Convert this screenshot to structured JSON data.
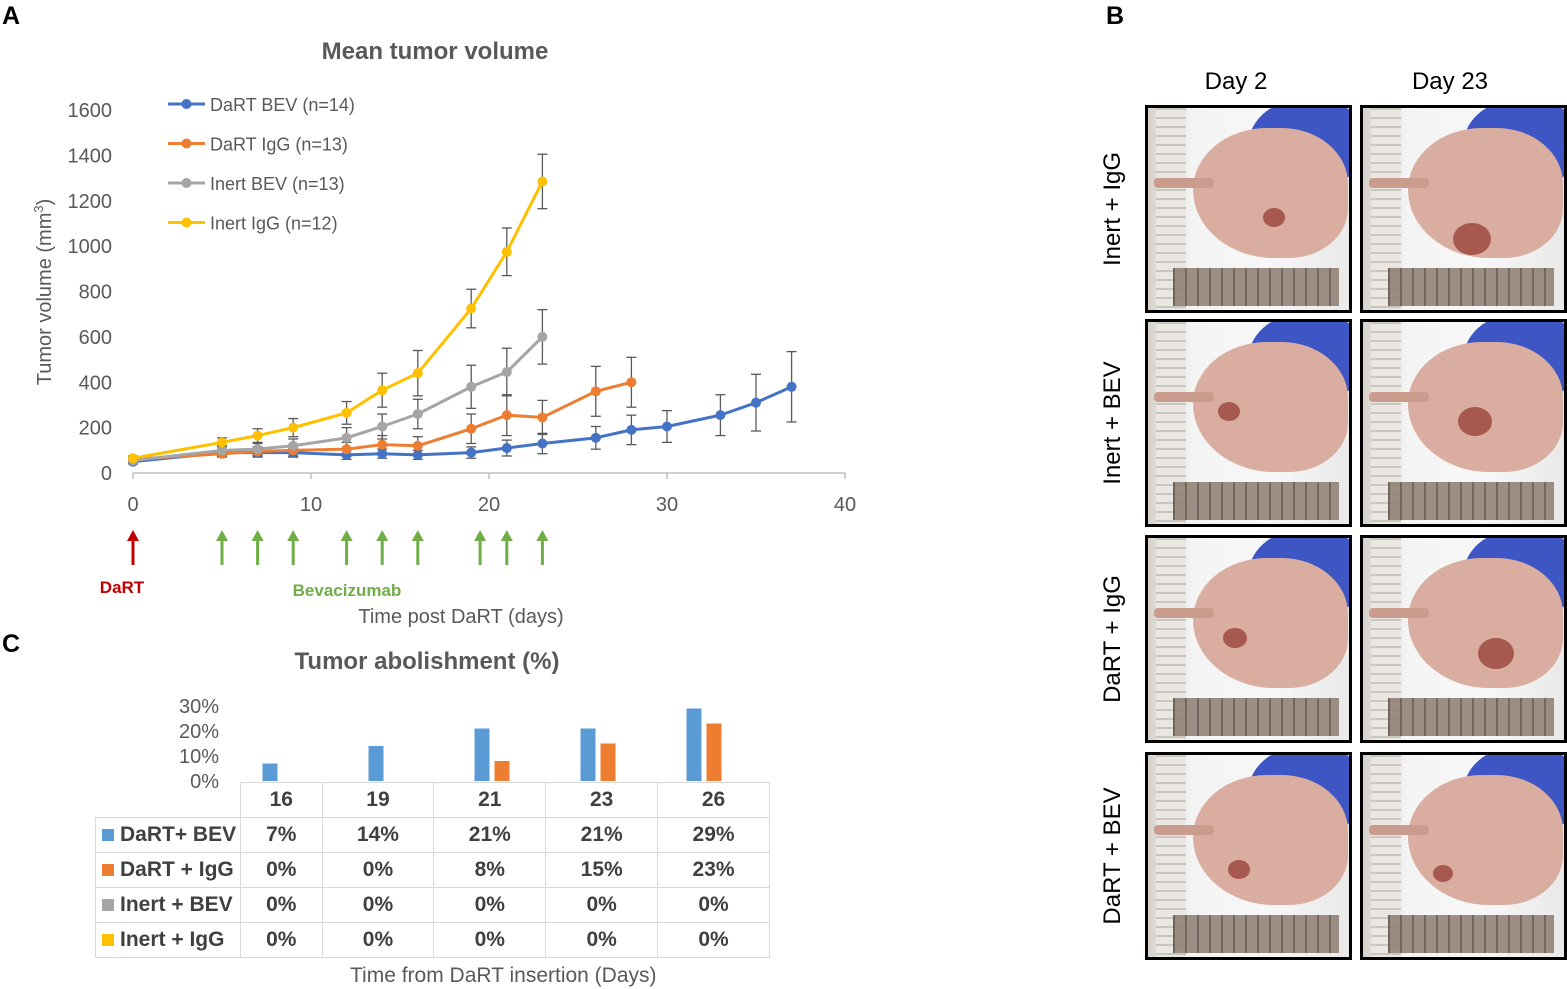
{
  "panel_labels": {
    "a": "A",
    "b": "B",
    "c": "C"
  },
  "chart_data": [
    {
      "type": "line",
      "title": "Mean tumor volume",
      "xlabel": "Time post DaRT (days)",
      "ylabel": "Tumor volume (mm",
      "ylabel_sup": "3",
      "ylabel_end": ")",
      "xlim": [
        0,
        40
      ],
      "ylim": [
        0,
        1600
      ],
      "xticks": [
        "0",
        "10",
        "20",
        "30",
        "40"
      ],
      "yticks": [
        "0",
        "200",
        "400",
        "600",
        "800",
        "1000",
        "1200",
        "1400",
        "1600"
      ],
      "legend_position": "top-left",
      "series": [
        {
          "name": "DaRT BEV (n=14)",
          "color": "#4472C4",
          "x": [
            0,
            5,
            7,
            9,
            12,
            14,
            16,
            19,
            21,
            23,
            26,
            28,
            30,
            33,
            35,
            37
          ],
          "y": [
            50,
            90,
            90,
            90,
            80,
            85,
            80,
            90,
            110,
            130,
            155,
            190,
            205,
            255,
            310,
            380
          ],
          "err": [
            10,
            15,
            20,
            20,
            20,
            20,
            20,
            25,
            35,
            45,
            50,
            65,
            70,
            90,
            125,
            155
          ]
        },
        {
          "name": "DaRT IgG (n=13)",
          "color": "#ED7D31",
          "x": [
            0,
            5,
            7,
            9,
            12,
            14,
            16,
            19,
            21,
            23,
            26,
            28
          ],
          "y": [
            60,
            85,
            95,
            100,
            105,
            125,
            120,
            195,
            255,
            245,
            360,
            400
          ],
          "err": [
            10,
            15,
            20,
            25,
            30,
            40,
            40,
            65,
            90,
            75,
            110,
            110
          ]
        },
        {
          "name": "Inert BEV (n=13)",
          "color": "#A5A5A5",
          "x": [
            0,
            5,
            7,
            9,
            12,
            14,
            16,
            19,
            21,
            23
          ],
          "y": [
            55,
            100,
            105,
            120,
            155,
            205,
            260,
            380,
            445,
            600
          ],
          "err": [
            10,
            20,
            25,
            30,
            45,
            55,
            65,
            95,
            105,
            120
          ]
        },
        {
          "name": "Inert IgG (n=12)",
          "color": "#FFC000",
          "x": [
            0,
            5,
            7,
            9,
            12,
            14,
            16,
            19,
            21,
            23
          ],
          "y": [
            65,
            135,
            165,
            200,
            265,
            365,
            440,
            725,
            975,
            1285
          ],
          "err": [
            10,
            20,
            30,
            40,
            50,
            75,
            100,
            85,
            105,
            120
          ]
        }
      ],
      "annotations": {
        "dart_label": "DaRT",
        "dart_color": "#C00000",
        "dart_day": 0,
        "bev_label": "Bevacizumab",
        "bev_color": "#70AD47",
        "bev_days": [
          5,
          7,
          9,
          12,
          14,
          16,
          19.5,
          21,
          23
        ]
      }
    },
    {
      "type": "bar",
      "title": "Tumor abolishment (%)",
      "xlabel": "Time from DaRT insertion (Days)",
      "categories": [
        "16",
        "19",
        "21",
        "23",
        "26"
      ],
      "ylim": [
        0,
        30
      ],
      "yticks": [
        "0%",
        "10%",
        "20%",
        "30%"
      ],
      "series": [
        {
          "name": "DaRT+ BEV",
          "color": "#5B9BD5",
          "values": [
            7,
            14,
            21,
            21,
            29
          ],
          "labels": [
            "7%",
            "14%",
            "21%",
            "21%",
            "29%"
          ]
        },
        {
          "name": "DaRT + IgG",
          "color": "#ED7D31",
          "values": [
            0,
            0,
            8,
            15,
            23
          ],
          "labels": [
            "0%",
            "0%",
            "8%",
            "15%",
            "23%"
          ]
        },
        {
          "name": "Inert + BEV",
          "color": "#A5A5A5",
          "values": [
            0,
            0,
            0,
            0,
            0
          ],
          "labels": [
            "0%",
            "0%",
            "0%",
            "0%",
            "0%"
          ]
        },
        {
          "name": "Inert + IgG",
          "color": "#FFC000",
          "values": [
            0,
            0,
            0,
            0,
            0
          ],
          "labels": [
            "0%",
            "0%",
            "0%",
            "0%",
            "0%"
          ]
        }
      ]
    }
  ],
  "photos": {
    "columns": [
      "Day 2",
      "Day 23"
    ],
    "rows": [
      "Inert + IgG",
      "Inert + BEV",
      "DaRT + IgG",
      "DaRT + BEV"
    ]
  }
}
